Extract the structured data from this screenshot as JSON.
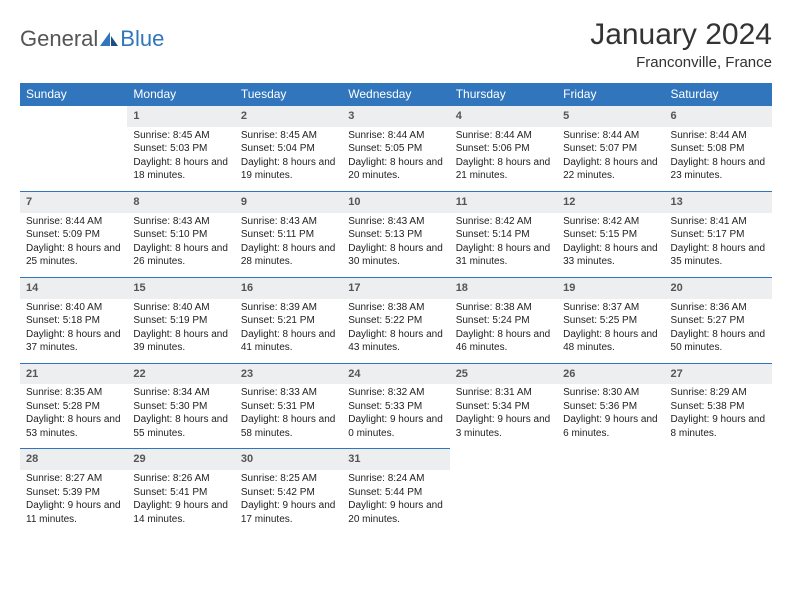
{
  "logo": {
    "text1": "General",
    "text2": "Blue"
  },
  "title": "January 2024",
  "location": "Franconville, France",
  "colors": {
    "header_bg": "#3176bd",
    "header_fg": "#ffffff",
    "daynum_bg": "#eceeef",
    "border": "#3176bd",
    "text": "#222222",
    "logo_gray": "#555555",
    "logo_blue": "#3176bd"
  },
  "weekdays": [
    "Sunday",
    "Monday",
    "Tuesday",
    "Wednesday",
    "Thursday",
    "Friday",
    "Saturday"
  ],
  "weeks": [
    [
      null,
      {
        "n": "1",
        "sr": "8:45 AM",
        "ss": "5:03 PM",
        "dl": "8 hours and 18 minutes."
      },
      {
        "n": "2",
        "sr": "8:45 AM",
        "ss": "5:04 PM",
        "dl": "8 hours and 19 minutes."
      },
      {
        "n": "3",
        "sr": "8:44 AM",
        "ss": "5:05 PM",
        "dl": "8 hours and 20 minutes."
      },
      {
        "n": "4",
        "sr": "8:44 AM",
        "ss": "5:06 PM",
        "dl": "8 hours and 21 minutes."
      },
      {
        "n": "5",
        "sr": "8:44 AM",
        "ss": "5:07 PM",
        "dl": "8 hours and 22 minutes."
      },
      {
        "n": "6",
        "sr": "8:44 AM",
        "ss": "5:08 PM",
        "dl": "8 hours and 23 minutes."
      }
    ],
    [
      {
        "n": "7",
        "sr": "8:44 AM",
        "ss": "5:09 PM",
        "dl": "8 hours and 25 minutes."
      },
      {
        "n": "8",
        "sr": "8:43 AM",
        "ss": "5:10 PM",
        "dl": "8 hours and 26 minutes."
      },
      {
        "n": "9",
        "sr": "8:43 AM",
        "ss": "5:11 PM",
        "dl": "8 hours and 28 minutes."
      },
      {
        "n": "10",
        "sr": "8:43 AM",
        "ss": "5:13 PM",
        "dl": "8 hours and 30 minutes."
      },
      {
        "n": "11",
        "sr": "8:42 AM",
        "ss": "5:14 PM",
        "dl": "8 hours and 31 minutes."
      },
      {
        "n": "12",
        "sr": "8:42 AM",
        "ss": "5:15 PM",
        "dl": "8 hours and 33 minutes."
      },
      {
        "n": "13",
        "sr": "8:41 AM",
        "ss": "5:17 PM",
        "dl": "8 hours and 35 minutes."
      }
    ],
    [
      {
        "n": "14",
        "sr": "8:40 AM",
        "ss": "5:18 PM",
        "dl": "8 hours and 37 minutes."
      },
      {
        "n": "15",
        "sr": "8:40 AM",
        "ss": "5:19 PM",
        "dl": "8 hours and 39 minutes."
      },
      {
        "n": "16",
        "sr": "8:39 AM",
        "ss": "5:21 PM",
        "dl": "8 hours and 41 minutes."
      },
      {
        "n": "17",
        "sr": "8:38 AM",
        "ss": "5:22 PM",
        "dl": "8 hours and 43 minutes."
      },
      {
        "n": "18",
        "sr": "8:38 AM",
        "ss": "5:24 PM",
        "dl": "8 hours and 46 minutes."
      },
      {
        "n": "19",
        "sr": "8:37 AM",
        "ss": "5:25 PM",
        "dl": "8 hours and 48 minutes."
      },
      {
        "n": "20",
        "sr": "8:36 AM",
        "ss": "5:27 PM",
        "dl": "8 hours and 50 minutes."
      }
    ],
    [
      {
        "n": "21",
        "sr": "8:35 AM",
        "ss": "5:28 PM",
        "dl": "8 hours and 53 minutes."
      },
      {
        "n": "22",
        "sr": "8:34 AM",
        "ss": "5:30 PM",
        "dl": "8 hours and 55 minutes."
      },
      {
        "n": "23",
        "sr": "8:33 AM",
        "ss": "5:31 PM",
        "dl": "8 hours and 58 minutes."
      },
      {
        "n": "24",
        "sr": "8:32 AM",
        "ss": "5:33 PM",
        "dl": "9 hours and 0 minutes."
      },
      {
        "n": "25",
        "sr": "8:31 AM",
        "ss": "5:34 PM",
        "dl": "9 hours and 3 minutes."
      },
      {
        "n": "26",
        "sr": "8:30 AM",
        "ss": "5:36 PM",
        "dl": "9 hours and 6 minutes."
      },
      {
        "n": "27",
        "sr": "8:29 AM",
        "ss": "5:38 PM",
        "dl": "9 hours and 8 minutes."
      }
    ],
    [
      {
        "n": "28",
        "sr": "8:27 AM",
        "ss": "5:39 PM",
        "dl": "9 hours and 11 minutes."
      },
      {
        "n": "29",
        "sr": "8:26 AM",
        "ss": "5:41 PM",
        "dl": "9 hours and 14 minutes."
      },
      {
        "n": "30",
        "sr": "8:25 AM",
        "ss": "5:42 PM",
        "dl": "9 hours and 17 minutes."
      },
      {
        "n": "31",
        "sr": "8:24 AM",
        "ss": "5:44 PM",
        "dl": "9 hours and 20 minutes."
      },
      null,
      null,
      null
    ]
  ],
  "labels": {
    "sunrise": "Sunrise:",
    "sunset": "Sunset:",
    "daylight": "Daylight:"
  }
}
